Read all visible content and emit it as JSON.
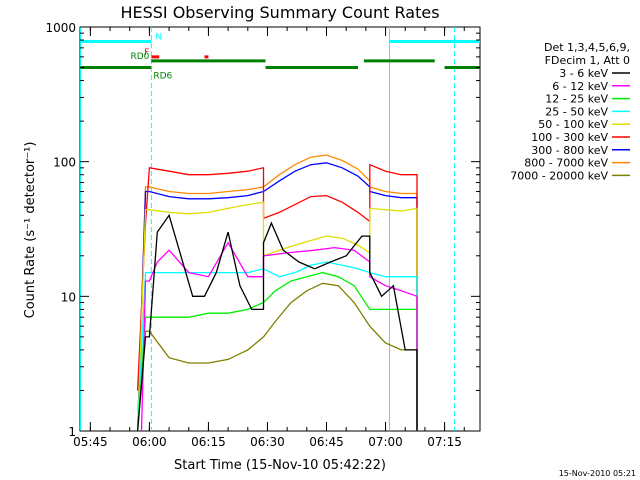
{
  "chart_data": {
    "type": "line",
    "title": "HESSI Observing Summary Count Rates",
    "xlabel": "Start Time (15-Nov-10 05:42:22)",
    "ylabel": "Count Rate (s⁻¹ detector⁻¹)",
    "yscale": "log",
    "ylim": [
      1,
      1000
    ],
    "xlim": [
      "05:42:22",
      "07:24:00"
    ],
    "x_ticks": [
      "05:45",
      "06:00",
      "06:15",
      "06:30",
      "06:45",
      "07:00",
      "07:15"
    ],
    "y_ticks": [
      "1",
      "10",
      "100",
      "1000"
    ],
    "grid": false,
    "legend_position": "right-top",
    "legend_header": [
      "Det 1,3,4,5,6,9,",
      "FDecim 1, Att 0"
    ],
    "footer": "15-Nov-2010 05:21",
    "series": [
      {
        "name": "3 - 6 keV",
        "color": "#000000",
        "x": [
          "05:57",
          "05:59",
          "06:00",
          "06:02",
          "06:05",
          "06:08",
          "06:11",
          "06:14",
          "06:17",
          "06:20",
          "06:23",
          "06:26",
          "06:29",
          "06:29",
          "06:31",
          "06:34",
          "06:38",
          "06:42",
          "06:46",
          "06:50",
          "06:54",
          "06:56",
          "06:56",
          "06:59",
          "07:02",
          "07:05",
          "07:08",
          "07:08"
        ],
        "y": [
          1,
          5,
          5,
          30,
          40,
          20,
          10,
          10,
          15,
          30,
          12,
          8,
          8,
          25,
          35,
          22,
          18,
          16,
          18,
          20,
          28,
          28,
          15,
          10,
          12,
          4,
          4,
          1
        ]
      },
      {
        "name": "6 - 12 keV",
        "color": "#ff00ff",
        "x": [
          "05:58",
          "05:59",
          "06:00",
          "06:02",
          "06:05",
          "06:10",
          "06:15",
          "06:20",
          "06:25",
          "06:29",
          "06:29",
          "06:35",
          "06:42",
          "06:47",
          "06:52",
          "06:56",
          "06:56",
          "07:00",
          "07:04",
          "07:08",
          "07:08"
        ],
        "y": [
          1,
          13,
          13,
          18,
          22,
          15,
          14,
          25,
          14,
          14,
          20,
          21,
          22,
          23,
          22,
          18,
          14,
          12,
          11,
          10,
          1
        ]
      },
      {
        "name": "12 - 25 keV",
        "color": "#00ee00",
        "x": [
          "05:57",
          "05:59",
          "06:00",
          "06:05",
          "06:10",
          "06:15",
          "06:20",
          "06:25",
          "06:29",
          "06:32",
          "06:36",
          "06:40",
          "06:44",
          "06:48",
          "06:52",
          "06:56",
          "07:00",
          "07:04",
          "07:08",
          "07:08"
        ],
        "y": [
          1,
          7,
          7,
          7,
          7,
          7.5,
          7.5,
          8,
          9,
          11,
          13,
          14,
          15,
          14,
          12,
          8,
          8,
          8,
          8,
          1
        ]
      },
      {
        "name": "25 - 50 keV",
        "color": "#00ffff",
        "x": [
          "05:57",
          "05:59",
          "06:00",
          "06:05",
          "06:10",
          "06:15",
          "06:20",
          "06:25",
          "06:29",
          "06:33",
          "06:37",
          "06:41",
          "06:45",
          "06:49",
          "06:53",
          "06:56",
          "07:00",
          "07:04",
          "07:08",
          "07:08"
        ],
        "y": [
          1,
          15,
          15,
          15,
          15,
          15,
          15,
          15,
          16,
          14,
          15,
          17,
          18,
          17,
          16,
          15,
          14,
          14,
          14,
          1
        ]
      },
      {
        "name": "50 - 100 keV",
        "color": "#dddd00",
        "x": [
          "05:57",
          "05:59",
          "06:00",
          "06:05",
          "06:10",
          "06:15",
          "06:20",
          "06:25",
          "06:29",
          "06:29",
          "06:33",
          "06:37",
          "06:41",
          "06:45",
          "06:49",
          "06:53",
          "06:56",
          "06:56",
          "07:00",
          "07:04",
          "07:08",
          "07:08"
        ],
        "y": [
          1,
          44,
          44,
          42,
          41,
          42,
          45,
          48,
          50,
          20,
          22,
          24,
          26,
          28,
          27,
          24,
          21,
          45,
          44,
          43,
          45,
          1
        ]
      },
      {
        "name": "100 - 300 keV",
        "color": "#ff0000",
        "x": [
          "05:57",
          "05:59",
          "06:00",
          "06:05",
          "06:10",
          "06:15",
          "06:20",
          "06:25",
          "06:29",
          "06:29",
          "06:33",
          "06:37",
          "06:41",
          "06:45",
          "06:49",
          "06:53",
          "06:56",
          "06:56",
          "07:00",
          "07:04",
          "07:08",
          "07:08"
        ],
        "y": [
          2,
          35,
          90,
          85,
          80,
          80,
          82,
          85,
          90,
          38,
          42,
          48,
          55,
          56,
          50,
          42,
          36,
          95,
          85,
          80,
          80,
          1
        ]
      },
      {
        "name": "300 - 800 keV",
        "color": "#0000ff",
        "x": [
          "05:57",
          "05:59",
          "06:00",
          "06:05",
          "06:10",
          "06:15",
          "06:20",
          "06:25",
          "06:29",
          "06:29",
          "06:33",
          "06:37",
          "06:41",
          "06:45",
          "06:49",
          "06:53",
          "06:56",
          "06:56",
          "07:00",
          "07:04",
          "07:08",
          "07:08"
        ],
        "y": [
          1,
          60,
          60,
          55,
          53,
          53,
          54,
          56,
          60,
          60,
          72,
          85,
          95,
          98,
          90,
          78,
          65,
          60,
          56,
          54,
          54,
          1
        ]
      },
      {
        "name": "800 - 7000 keV",
        "color": "#ff8800",
        "x": [
          "05:57",
          "05:59",
          "06:00",
          "06:05",
          "06:10",
          "06:15",
          "06:20",
          "06:25",
          "06:29",
          "06:29",
          "06:33",
          "06:37",
          "06:41",
          "06:45",
          "06:49",
          "06:53",
          "06:56",
          "06:56",
          "07:00",
          "07:04",
          "07:08",
          "07:08"
        ],
        "y": [
          1,
          65,
          65,
          60,
          58,
          58,
          60,
          62,
          65,
          65,
          80,
          95,
          108,
          112,
          102,
          88,
          72,
          65,
          60,
          58,
          58,
          1
        ]
      },
      {
        "name": "7000 - 20000 keV",
        "color": "#808000",
        "x": [
          "05:57",
          "05:59",
          "06:00",
          "06:05",
          "06:10",
          "06:15",
          "06:20",
          "06:25",
          "06:29",
          "06:32",
          "06:36",
          "06:40",
          "06:44",
          "06:48",
          "06:52",
          "06:56",
          "07:00",
          "07:04",
          "07:08",
          "07:08"
        ],
        "y": [
          1,
          5.5,
          5.5,
          3.5,
          3.2,
          3.2,
          3.4,
          4,
          5,
          6.5,
          9,
          11,
          12.5,
          12,
          9,
          6,
          4.5,
          4,
          4,
          1
        ]
      }
    ],
    "vertical_lines": [
      {
        "x": "06:00:30",
        "color": "#00ffff",
        "style": "dashed"
      },
      {
        "x": "07:01:00",
        "color": "#00ffff",
        "style": "solid"
      },
      {
        "x": "07:17:30",
        "color": "#00ffff",
        "style": "dashed"
      },
      {
        "x": "05:42:30",
        "color": "#00ffff",
        "style": "solid"
      }
    ],
    "flag_bars": [
      {
        "label": "N",
        "color": "#00ffff",
        "level": 780,
        "segments": [
          [
            "05:42:30",
            "06:00:30"
          ],
          [
            "07:01:00",
            "07:24:00"
          ]
        ]
      },
      {
        "label": "F",
        "color": "#ff0000",
        "level": 600,
        "segments": [
          [
            "06:00:30",
            "06:02:30"
          ],
          [
            "06:14:00",
            "06:15:00"
          ]
        ]
      },
      {
        "label": "RD0",
        "color": "#008000",
        "level": 560,
        "segments": [
          [
            "06:00:30",
            "06:29:30"
          ],
          [
            "06:54:30",
            "07:12:30"
          ]
        ]
      },
      {
        "label": "RD6",
        "color": "#008000",
        "level": 500,
        "segments": [
          [
            "05:42:30",
            "06:00:30"
          ],
          [
            "06:29:30",
            "06:53:00"
          ],
          [
            "07:15:00",
            "07:24:00"
          ]
        ]
      }
    ]
  }
}
